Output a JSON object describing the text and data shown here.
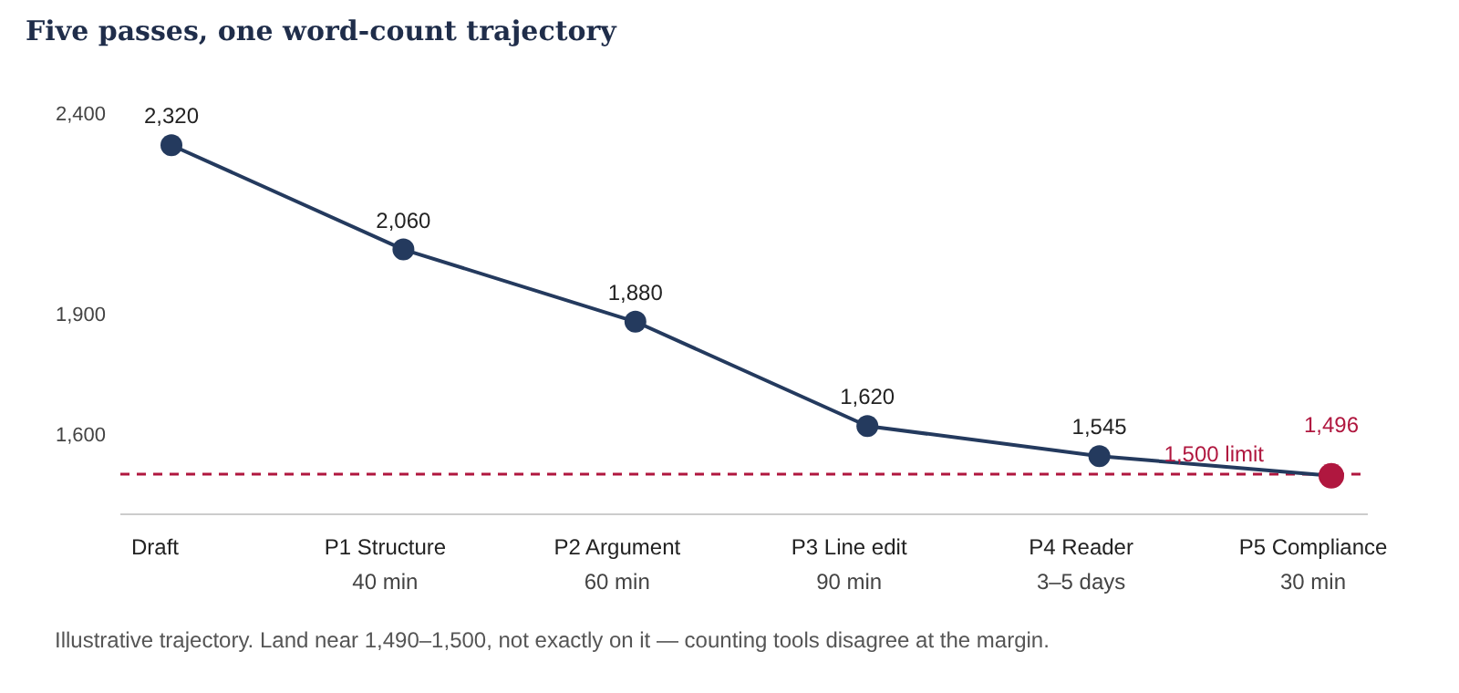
{
  "chart_data": {
    "type": "line",
    "title": "Five passes, one word-count trajectory",
    "categories": [
      "Draft",
      "P1 Structure\n40 min",
      "P2 Argument\n60 min",
      "P3 Line edit\n90 min",
      "P4 Reader\n3–5 days",
      "P5 Compliance\n30 min"
    ],
    "series": [
      {
        "color": "#243a5e",
        "values": [
          2320,
          2060,
          1880,
          1620,
          1545,
          1496
        ],
        "colors": [
          "#243a5e",
          "#243a5e",
          "#243a5e",
          "#243a5e",
          "#243a5e",
          "#b0173f"
        ],
        "value_labels": [
          "2,320",
          "2,060",
          "1,880",
          "1,620",
          "1,545",
          "1,496"
        ]
      }
    ],
    "ylim": [
      1400,
      2400
    ],
    "yticks": [
      {
        "value": 1600,
        "label": "1,600"
      },
      {
        "value": 1900,
        "label": "1,900"
      },
      {
        "value": 2400,
        "label": "2,400"
      }
    ],
    "ref_lines": [
      {
        "axis": "y",
        "value": 1500,
        "label": "1,500 limit",
        "color": "#b0173f",
        "line_style": "dashed"
      }
    ],
    "marker": "circle",
    "line_style": "solid",
    "grid": false,
    "legend": false,
    "annotations": [
      "Illustrative trajectory. Land near 1,490–1,500, not exactly on it — counting tools disagree at the margin."
    ]
  }
}
